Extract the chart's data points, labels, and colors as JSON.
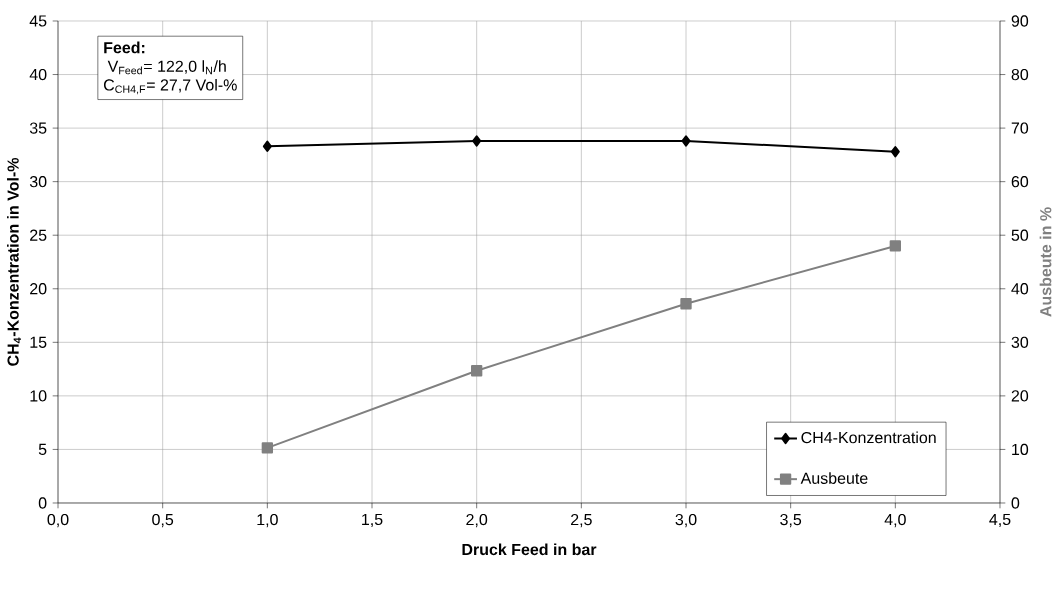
{
  "chart_data": {
    "type": "line",
    "xlabel": "Druck Feed in bar",
    "ylabel": "CH$_{4}$-Konzentration in Vol-%",
    "y2label": "Ausbeute in %",
    "x": [
      1,
      2,
      3,
      4
    ],
    "series": [
      {
        "name": "CH4-Konzentration",
        "color": "#000000",
        "marker": "diamond",
        "values": [
          33.3,
          33.8,
          33.8,
          32.8
        ]
      },
      {
        "name": "Ausbeute",
        "color": "#808080",
        "marker": "square",
        "axis": "y2",
        "values": [
          10.3,
          24.7,
          37.2,
          48.0
        ]
      }
    ],
    "xlim": [
      0,
      4.5
    ],
    "xticks": [
      {
        "value": 0,
        "label": "0,0"
      },
      {
        "value": 0.5,
        "label": "0,5"
      },
      {
        "value": 1,
        "label": "1,0"
      },
      {
        "value": 1.5,
        "label": "1,5"
      },
      {
        "value": 2,
        "label": "2,0"
      },
      {
        "value": 2.5,
        "label": "2,5"
      },
      {
        "value": 3,
        "label": "3,0"
      },
      {
        "value": 3.5,
        "label": "3,5"
      },
      {
        "value": 4,
        "label": "4,0"
      },
      {
        "value": 4.5,
        "label": "4,5"
      }
    ],
    "ylim": [
      0,
      45
    ],
    "yticks": [
      0,
      5,
      10,
      15,
      20,
      25,
      30,
      35,
      40,
      45
    ],
    "y2lim": [
      0,
      90
    ],
    "y2ticks": [
      0,
      10,
      20,
      30,
      40,
      50,
      60,
      70,
      80,
      90
    ],
    "annotations": [
      "**Feed:**",
      " V$_{Feed}$= 122,0 l$_{N}$/h",
      "C$_{CH4,F}$= 27,7  Vol-%"
    ],
    "grid": true,
    "legend": "bottom right",
    "line_style": "solid"
  }
}
